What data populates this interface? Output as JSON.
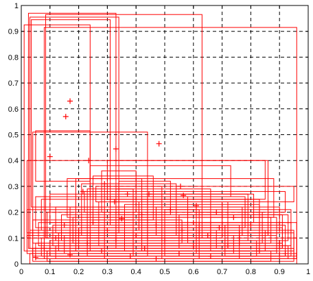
{
  "chart_data": {
    "type": "scatter",
    "title": "",
    "xlabel": "",
    "ylabel": "",
    "xlim": [
      0,
      1
    ],
    "ylim": [
      0,
      1
    ],
    "grid": true,
    "grid_style": "dashed",
    "legend": "none",
    "x_ticks": [
      "0",
      "0.1",
      "0.2",
      "0.3",
      "0.4",
      "0.5",
      "0.6",
      "0.7",
      "0.8",
      "0.9",
      "1"
    ],
    "y_ticks": [
      "0",
      "0.1",
      "0.2",
      "0.3",
      "0.4",
      "0.5",
      "0.6",
      "0.7",
      "0.8",
      "0.9",
      "1"
    ],
    "x_tick_values": [
      0,
      0.1,
      0.2,
      0.3,
      0.4,
      0.5,
      0.6,
      0.7,
      0.8,
      0.9,
      1
    ],
    "y_tick_values": [
      0,
      0.1,
      0.2,
      0.3,
      0.4,
      0.5,
      0.6,
      0.7,
      0.8,
      0.9,
      1
    ],
    "series": [
      {
        "marker": "plus",
        "color": "#ff0000",
        "points": [
          [
            0.17,
            0.63
          ],
          [
            0.155,
            0.57
          ],
          [
            0.1,
            0.415
          ],
          [
            0.235,
            0.4
          ],
          [
            0.33,
            0.445
          ],
          [
            0.48,
            0.465
          ],
          [
            0.29,
            0.31
          ],
          [
            0.555,
            0.3
          ],
          [
            0.215,
            0.28
          ],
          [
            0.37,
            0.27
          ],
          [
            0.445,
            0.27
          ],
          [
            0.565,
            0.265
          ],
          [
            0.325,
            0.24
          ],
          [
            0.61,
            0.225
          ],
          [
            0.52,
            0.21
          ],
          [
            0.68,
            0.2
          ],
          [
            0.42,
            0.19
          ],
          [
            0.74,
            0.18
          ],
          [
            0.35,
            0.175
          ],
          [
            0.25,
            0.16
          ],
          [
            0.6,
            0.16
          ],
          [
            0.8,
            0.15
          ],
          [
            0.15,
            0.15
          ],
          [
            0.47,
            0.15
          ],
          [
            0.69,
            0.14
          ],
          [
            0.3,
            0.13
          ],
          [
            0.56,
            0.13
          ],
          [
            0.86,
            0.12
          ],
          [
            0.2,
            0.12
          ],
          [
            0.4,
            0.11
          ],
          [
            0.65,
            0.11
          ],
          [
            0.76,
            0.1
          ],
          [
            0.12,
            0.1
          ],
          [
            0.33,
            0.09
          ],
          [
            0.5,
            0.09
          ],
          [
            0.9,
            0.08
          ],
          [
            0.23,
            0.08
          ],
          [
            0.6,
            0.07
          ],
          [
            0.72,
            0.07
          ],
          [
            0.08,
            0.06
          ],
          [
            0.43,
            0.06
          ],
          [
            0.83,
            0.05
          ],
          [
            0.28,
            0.05
          ],
          [
            0.55,
            0.04
          ],
          [
            0.92,
            0.04
          ],
          [
            0.17,
            0.035
          ],
          [
            0.38,
            0.03
          ],
          [
            0.66,
            0.03
          ],
          [
            0.05,
            0.025
          ],
          [
            0.47,
            0.02
          ]
        ]
      }
    ],
    "rectangles": [
      [
        0.025,
        0.06,
        0.33,
        0.97
      ],
      [
        0.03,
        0.12,
        0.34,
        0.955
      ],
      [
        0.035,
        0.22,
        0.31,
        0.945
      ],
      [
        0.01,
        0.05,
        0.24,
        0.925
      ],
      [
        0.085,
        0.1,
        0.63,
        0.965
      ],
      [
        0.08,
        0.02,
        0.96,
        0.915
      ],
      [
        0.04,
        0.03,
        0.44,
        0.51
      ],
      [
        0.02,
        0.12,
        0.86,
        0.4
      ],
      [
        0.05,
        0.32,
        0.24,
        0.515
      ],
      [
        0.3,
        0.25,
        0.85,
        0.4
      ],
      [
        0.24,
        0.26,
        0.73,
        0.38
      ],
      [
        0.26,
        0.24,
        0.95,
        0.3
      ],
      [
        0.22,
        0.2,
        0.92,
        0.28
      ],
      [
        0.16,
        0.18,
        0.88,
        0.33
      ],
      [
        0.1,
        0.16,
        0.81,
        0.27
      ],
      [
        0.05,
        0.14,
        0.78,
        0.26
      ],
      [
        0.07,
        0.13,
        0.83,
        0.25
      ],
      [
        0.12,
        0.12,
        0.9,
        0.22
      ],
      [
        0.02,
        0.1,
        0.62,
        0.21
      ],
      [
        0.09,
        0.1,
        0.7,
        0.2
      ],
      [
        0.14,
        0.09,
        0.93,
        0.19
      ],
      [
        0.18,
        0.08,
        0.87,
        0.18
      ],
      [
        0.04,
        0.08,
        0.56,
        0.17
      ],
      [
        0.06,
        0.07,
        0.94,
        0.16
      ],
      [
        0.11,
        0.07,
        0.76,
        0.15
      ],
      [
        0.2,
        0.06,
        0.91,
        0.14
      ],
      [
        0.03,
        0.06,
        0.68,
        0.13
      ],
      [
        0.08,
        0.05,
        0.85,
        0.13
      ],
      [
        0.13,
        0.05,
        0.95,
        0.12
      ],
      [
        0.15,
        0.04,
        0.74,
        0.11
      ],
      [
        0.02,
        0.04,
        0.89,
        0.11
      ],
      [
        0.07,
        0.03,
        0.96,
        0.1
      ],
      [
        0.1,
        0.03,
        0.82,
        0.09
      ],
      [
        0.05,
        0.02,
        0.9,
        0.08
      ],
      [
        0.12,
        0.02,
        0.93,
        0.07
      ],
      [
        0.04,
        0.01,
        0.95,
        0.06
      ],
      [
        0.09,
        0.01,
        0.87,
        0.05
      ],
      [
        0.03,
        0.0,
        0.96,
        0.04
      ],
      [
        0.17,
        0.04,
        0.61,
        0.22
      ],
      [
        0.27,
        0.07,
        0.72,
        0.24
      ],
      [
        0.33,
        0.1,
        0.66,
        0.29
      ],
      [
        0.21,
        0.11,
        0.54,
        0.31
      ],
      [
        0.36,
        0.05,
        0.83,
        0.23
      ],
      [
        0.44,
        0.09,
        0.79,
        0.27
      ],
      [
        0.5,
        0.03,
        0.94,
        0.21
      ],
      [
        0.55,
        0.06,
        0.91,
        0.19
      ],
      [
        0.62,
        0.02,
        0.96,
        0.16
      ],
      [
        0.29,
        0.02,
        0.49,
        0.3
      ],
      [
        0.19,
        0.05,
        0.42,
        0.33
      ],
      [
        0.23,
        0.03,
        0.39,
        0.29
      ],
      [
        0.31,
        0.15,
        0.58,
        0.26
      ],
      [
        0.41,
        0.13,
        0.7,
        0.24
      ],
      [
        0.47,
        0.11,
        0.77,
        0.22
      ],
      [
        0.58,
        0.08,
        0.84,
        0.2
      ],
      [
        0.66,
        0.05,
        0.89,
        0.18
      ],
      [
        0.71,
        0.03,
        0.92,
        0.15
      ],
      [
        0.76,
        0.02,
        0.95,
        0.13
      ],
      [
        0.25,
        0.17,
        0.46,
        0.34
      ],
      [
        0.28,
        0.2,
        0.4,
        0.36
      ],
      [
        0.34,
        0.19,
        0.52,
        0.32
      ]
    ]
  }
}
